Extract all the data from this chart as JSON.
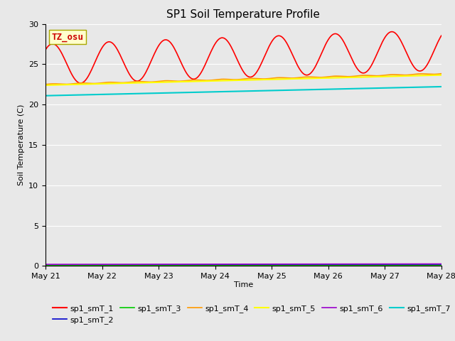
{
  "title": "SP1 Soil Temperature Profile",
  "xlabel": "Time",
  "ylabel": "Soil Temperature (C)",
  "ylim": [
    0,
    30
  ],
  "yticks": [
    0,
    5,
    10,
    15,
    20,
    25,
    30
  ],
  "xtick_labels": [
    "May 21",
    "May 22",
    "May 23",
    "May 24",
    "May 25",
    "May 26",
    "May 27",
    "May 28"
  ],
  "annotation_text": "TZ_osu",
  "annotation_color": "#cc0000",
  "annotation_bg": "#ffffcc",
  "annotation_border": "#aaa800",
  "series_colors": {
    "sp1_smT_1": "#ff0000",
    "sp1_smT_2": "#0000cc",
    "sp1_smT_3": "#00cc00",
    "sp1_smT_4": "#ff9900",
    "sp1_smT_5": "#ffff00",
    "sp1_smT_6": "#9900cc",
    "sp1_smT_7": "#00cccc"
  },
  "background_color": "#e8e8e8",
  "grid_color": "#ffffff",
  "fig_facecolor": "#e8e8e8"
}
